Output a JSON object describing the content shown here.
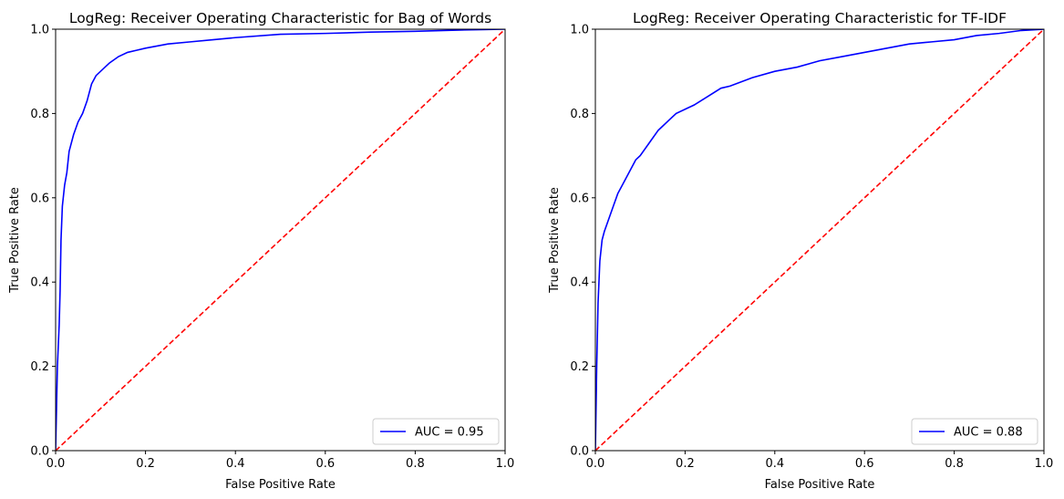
{
  "chart_data": [
    {
      "type": "line",
      "title": "LogReg: Receiver Operating Characteristic for Bag of Words",
      "xlabel": "False Positive Rate",
      "ylabel": "True Positive Rate",
      "xlim": [
        0,
        1
      ],
      "ylim": [
        0,
        1
      ],
      "x_ticks": [
        "0.0",
        "0.2",
        "0.4",
        "0.6",
        "0.8",
        "1.0"
      ],
      "y_ticks": [
        "0.0",
        "0.2",
        "0.4",
        "0.6",
        "0.8",
        "1.0"
      ],
      "grid": false,
      "legend_position": "lower-right",
      "series": [
        {
          "name": "AUC = 0.95",
          "color": "#0000ff",
          "style": "solid",
          "x": [
            0.0,
            0.002,
            0.004,
            0.006,
            0.008,
            0.01,
            0.012,
            0.015,
            0.02,
            0.025,
            0.03,
            0.04,
            0.05,
            0.06,
            0.07,
            0.08,
            0.09,
            0.1,
            0.12,
            0.14,
            0.16,
            0.18,
            0.2,
            0.25,
            0.3,
            0.35,
            0.4,
            0.5,
            0.6,
            0.7,
            0.8,
            0.9,
            0.95,
            1.0
          ],
          "y": [
            0.0,
            0.1,
            0.2,
            0.25,
            0.3,
            0.38,
            0.5,
            0.58,
            0.63,
            0.66,
            0.71,
            0.75,
            0.78,
            0.8,
            0.83,
            0.87,
            0.89,
            0.9,
            0.92,
            0.935,
            0.945,
            0.95,
            0.955,
            0.965,
            0.97,
            0.975,
            0.98,
            0.988,
            0.99,
            0.993,
            0.995,
            0.998,
            0.999,
            1.0
          ]
        },
        {
          "name": "",
          "color": "#ff0000",
          "style": "dashed",
          "x": [
            0,
            1
          ],
          "y": [
            0,
            1
          ]
        }
      ]
    },
    {
      "type": "line",
      "title": "LogReg: Receiver Operating Characteristic for TF-IDF",
      "xlabel": "False Positive Rate",
      "ylabel": "True Positive Rate",
      "xlim": [
        0,
        1
      ],
      "ylim": [
        0,
        1
      ],
      "x_ticks": [
        "0.0",
        "0.2",
        "0.4",
        "0.6",
        "0.8",
        "1.0"
      ],
      "y_ticks": [
        "0.0",
        "0.2",
        "0.4",
        "0.6",
        "0.8",
        "1.0"
      ],
      "grid": false,
      "legend_position": "lower-right",
      "series": [
        {
          "name": "AUC = 0.88",
          "color": "#0000ff",
          "style": "solid",
          "x": [
            0.0,
            0.003,
            0.006,
            0.01,
            0.015,
            0.02,
            0.03,
            0.04,
            0.05,
            0.06,
            0.07,
            0.08,
            0.09,
            0.1,
            0.12,
            0.14,
            0.16,
            0.18,
            0.2,
            0.22,
            0.25,
            0.28,
            0.3,
            0.35,
            0.4,
            0.45,
            0.5,
            0.55,
            0.6,
            0.65,
            0.7,
            0.75,
            0.8,
            0.85,
            0.9,
            0.95,
            1.0
          ],
          "y": [
            0.0,
            0.2,
            0.35,
            0.45,
            0.5,
            0.52,
            0.55,
            0.58,
            0.61,
            0.63,
            0.65,
            0.67,
            0.69,
            0.7,
            0.73,
            0.76,
            0.78,
            0.8,
            0.81,
            0.82,
            0.84,
            0.86,
            0.865,
            0.885,
            0.9,
            0.91,
            0.925,
            0.935,
            0.945,
            0.955,
            0.965,
            0.97,
            0.975,
            0.985,
            0.99,
            0.997,
            1.0
          ]
        },
        {
          "name": "",
          "color": "#ff0000",
          "style": "dashed",
          "x": [
            0,
            1
          ],
          "y": [
            0,
            1
          ]
        }
      ]
    }
  ]
}
